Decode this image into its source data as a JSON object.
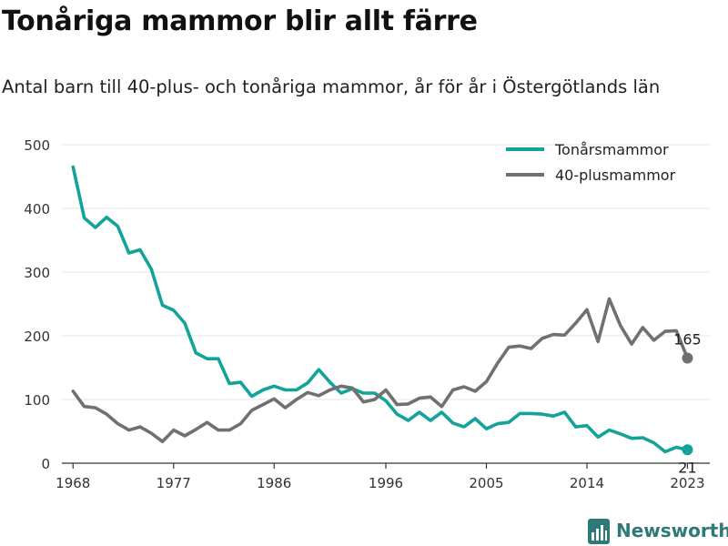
{
  "header": {
    "title": "Tonåriga mammor blir allt färre",
    "subtitle": "Antal barn till 40-plus- och tonåriga mammor, år för år i Östergötlands län"
  },
  "logo": {
    "text": "Newsworthy",
    "icon": "bar-chart-logo-icon"
  },
  "chart_data": {
    "type": "line",
    "xlim": [
      1967,
      2025
    ],
    "ylim": [
      0,
      500
    ],
    "yticks": [
      0,
      100,
      200,
      300,
      400,
      500
    ],
    "xticks": [
      1968,
      1977,
      1986,
      1996,
      2005,
      2014,
      2023
    ],
    "grid": true,
    "legend": "top-right",
    "x": [
      1968,
      1969,
      1970,
      1971,
      1972,
      1973,
      1974,
      1975,
      1976,
      1977,
      1978,
      1979,
      1980,
      1981,
      1982,
      1983,
      1984,
      1985,
      1986,
      1987,
      1988,
      1989,
      1990,
      1991,
      1992,
      1993,
      1994,
      1995,
      1996,
      1997,
      1998,
      1999,
      2000,
      2001,
      2002,
      2003,
      2004,
      2005,
      2006,
      2007,
      2008,
      2009,
      2010,
      2011,
      2012,
      2013,
      2014,
      2015,
      2016,
      2017,
      2018,
      2019,
      2020,
      2021,
      2022,
      2023
    ],
    "series": [
      {
        "name": "Tonårsmammor",
        "color": "#12a39a",
        "values": [
          465,
          385,
          370,
          386,
          372,
          330,
          335,
          305,
          248,
          240,
          220,
          173,
          164,
          164,
          125,
          127,
          105,
          115,
          121,
          115,
          115,
          126,
          147,
          127,
          110,
          117,
          110,
          110,
          98,
          77,
          67,
          80,
          67,
          80,
          63,
          57,
          70,
          54,
          62,
          64,
          78,
          78,
          77,
          74,
          80,
          57,
          59,
          41,
          52,
          46,
          39,
          40,
          32,
          18,
          25,
          21
        ],
        "end_label": "21"
      },
      {
        "name": "40-plusmammor",
        "color": "#707070",
        "values": [
          113,
          89,
          87,
          77,
          62,
          52,
          57,
          47,
          34,
          52,
          43,
          53,
          64,
          52,
          52,
          62,
          83,
          92,
          101,
          87,
          100,
          111,
          106,
          115,
          121,
          118,
          96,
          100,
          115,
          92,
          93,
          102,
          104,
          89,
          115,
          120,
          113,
          128,
          157,
          182,
          184,
          180,
          196,
          202,
          201,
          220,
          241,
          191,
          258,
          216,
          187,
          213,
          193,
          207,
          208,
          165
        ],
        "end_label": "165"
      }
    ]
  }
}
